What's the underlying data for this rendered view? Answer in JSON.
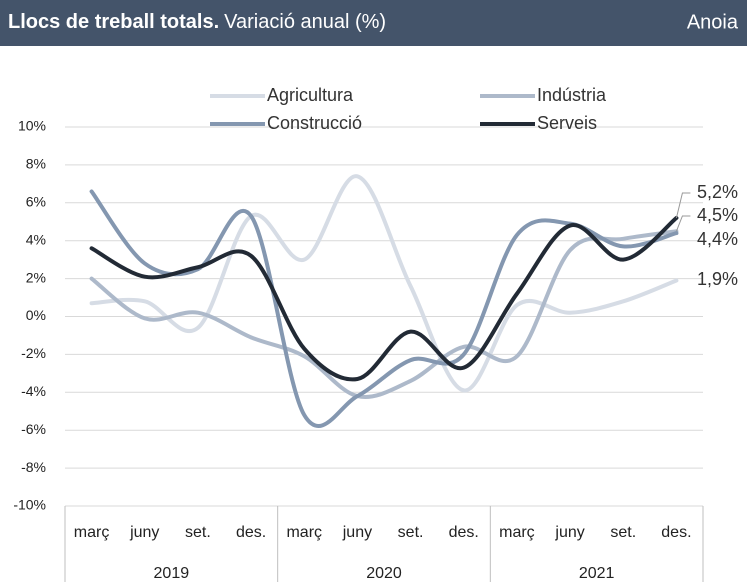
{
  "chart_data": {
    "type": "line",
    "title": "Llocs de treball totals.",
    "subtitle": "Variació anual (%)",
    "region": "Anoia",
    "categories": [
      "març",
      "juny",
      "set.",
      "des.",
      "març",
      "juny",
      "set.",
      "des.",
      "març",
      "juny",
      "set.",
      "des."
    ],
    "years": [
      "2019",
      "2020",
      "2021"
    ],
    "series": [
      {
        "name": "Agricultura",
        "color": "#d6dce5",
        "values": [
          0.7,
          0.8,
          -0.6,
          5.3,
          3.0,
          7.4,
          1.6,
          -3.9,
          0.6,
          0.2,
          0.8,
          1.9
        ],
        "value_labels": [
          null,
          null,
          null,
          null,
          null,
          null,
          null,
          null,
          null,
          null,
          null,
          "1,9%"
        ]
      },
      {
        "name": "Indústria",
        "color": "#adb9ca",
        "values": [
          2.0,
          -0.1,
          0.2,
          -1.1,
          -2.1,
          -4.2,
          -3.4,
          -1.6,
          -2.1,
          3.5,
          4.1,
          4.5
        ],
        "value_labels": [
          null,
          null,
          null,
          null,
          null,
          null,
          null,
          null,
          null,
          null,
          null,
          "4,5%"
        ]
      },
      {
        "name": "Construcció",
        "color": "#8497b0",
        "values": [
          6.6,
          2.8,
          2.5,
          5.3,
          -5.2,
          -4.2,
          -2.3,
          -2.0,
          4.3,
          4.9,
          3.7,
          4.4
        ],
        "value_labels": [
          null,
          null,
          null,
          null,
          null,
          null,
          null,
          null,
          null,
          null,
          null,
          "4,4%"
        ]
      },
      {
        "name": "Serveis",
        "color": "#222a35",
        "values": [
          3.6,
          2.1,
          2.6,
          3.2,
          -1.7,
          -3.3,
          -0.8,
          -2.7,
          1.2,
          4.8,
          3.0,
          5.2
        ],
        "value_labels": [
          null,
          null,
          null,
          null,
          null,
          null,
          null,
          null,
          null,
          null,
          null,
          "5,2%"
        ]
      }
    ],
    "ylim": [
      -10,
      10
    ],
    "yticks": [
      {
        "value": -10,
        "label": "-10%"
      },
      {
        "value": -8,
        "label": "-8%"
      },
      {
        "value": -6,
        "label": "-6%"
      },
      {
        "value": -4,
        "label": "-4%"
      },
      {
        "value": -2,
        "label": "-2%"
      },
      {
        "value": 0,
        "label": "0%"
      },
      {
        "value": 2,
        "label": "2%"
      },
      {
        "value": 4,
        "label": "4%"
      },
      {
        "value": 6,
        "label": "6%"
      },
      {
        "value": 8,
        "label": "8%"
      },
      {
        "value": 10,
        "label": "10%"
      }
    ],
    "grid": true,
    "legend": "top"
  }
}
